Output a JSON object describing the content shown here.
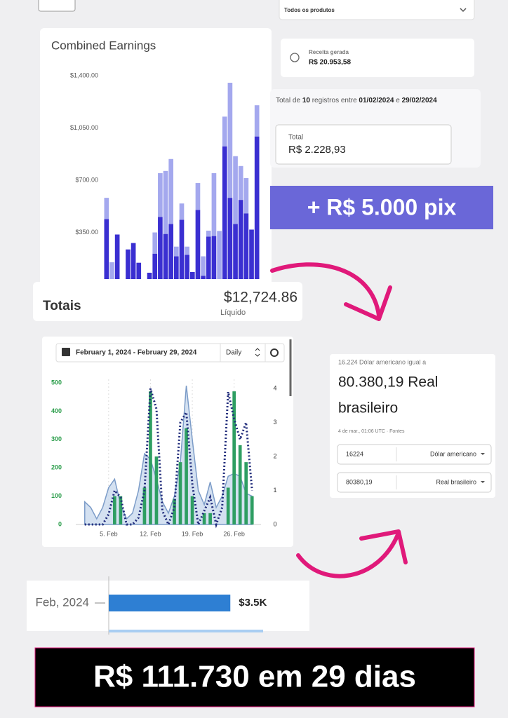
{
  "product_filter": "Todos os produtos",
  "revenue": {
    "label": "Receita gerada",
    "value": "R$ 20.953,58"
  },
  "records": {
    "prefix": "Total de",
    "count": "10",
    "middle": "registros entre",
    "start": "01/02/2024",
    "joiner": "e",
    "end": "29/02/2024"
  },
  "total_box": {
    "label": "Total",
    "value": "R$ 2.228,93"
  },
  "pix_banner": "+ R$ 5.000 pix",
  "totals": {
    "label": "Totais",
    "value": "$12,724.86",
    "sublabel": "Líquido"
  },
  "daily_controls": {
    "date_range": "February 1, 2024 - February 29, 2024",
    "interval": "Daily"
  },
  "converter": {
    "caption": "16.224 Dólar americano igual a",
    "result_line1": "80.380,19 Real",
    "result_line2": "brasileiro",
    "timestamp": "4 de mar., 01:06 UTC · Fontes",
    "from_amount": "16224",
    "from_currency": "Dólar americano",
    "to_amount": "80380,19",
    "to_currency": "Real brasileiro"
  },
  "footer_banner": "R$ 111.730 em 29 dias",
  "chart_data": [
    {
      "type": "bar",
      "title": "Combined Earnings",
      "stacked": true,
      "ylim": [
        0,
        1400
      ],
      "yticks": [
        {
          "value": 350,
          "label": "$350.00"
        },
        {
          "value": 700,
          "label": "$700.00"
        },
        {
          "value": 1050,
          "label": "$1,050.00"
        },
        {
          "value": 1400,
          "label": "$1,400.00"
        }
      ],
      "series": [
        {
          "color": "#3a2fd1",
          "values": [
            440,
            0,
            336,
            0,
            236,
            279,
            147,
            0,
            80,
            208,
            454,
            340,
            407,
            190,
            435,
            200,
            85,
            501,
            60,
            322,
            326,
            0,
            927,
            582,
            407,
            568,
            478,
            369,
            993
          ]
        },
        {
          "color": "#a4a8ee",
          "values": [
            142,
            150,
            0,
            0,
            0,
            0,
            0,
            0,
            0,
            142,
            293,
            422,
            435,
            65,
            109,
            55,
            0,
            180,
            130,
            40,
            421,
            360,
            199,
            771,
            454,
            227,
            236,
            0,
            209
          ]
        }
      ]
    },
    {
      "type": "combo",
      "x": [
        1,
        2,
        3,
        4,
        5,
        6,
        7,
        8,
        9,
        10,
        11,
        12,
        13,
        14,
        15,
        16,
        17,
        18,
        19,
        20,
        21,
        22,
        23,
        24,
        25,
        26,
        27,
        28,
        29
      ],
      "xlim": [
        -0.5,
        30.5
      ],
      "xticks": [
        {
          "value": 5,
          "label": "5. Feb"
        },
        {
          "value": 12,
          "label": "12. Feb"
        },
        {
          "value": 19,
          "label": "19. Feb"
        },
        {
          "value": 26,
          "label": "26. Feb"
        }
      ],
      "ylim": [
        0,
        500
      ],
      "yticks": [
        0,
        100,
        200,
        300,
        400,
        500
      ],
      "ytick_color": "#2a9d4a",
      "y2lim": [
        0,
        4
      ],
      "y2ticks": [
        0,
        1,
        2,
        3,
        4
      ],
      "series": [
        {
          "kind": "area",
          "color": "#7c9cc8",
          "values": [
            80,
            60,
            20,
            60,
            130,
            160,
            70,
            20,
            40,
            120,
            250,
            230,
            160,
            80,
            40,
            100,
            220,
            490,
            300,
            120,
            70,
            150,
            60,
            100,
            170,
            180,
            170,
            110,
            100
          ]
        },
        {
          "kind": "bar",
          "color": "#2e9e62",
          "values": [
            0,
            0,
            0,
            0,
            0,
            100,
            100,
            0,
            0,
            0,
            130,
            470,
            240,
            0,
            0,
            90,
            220,
            340,
            100,
            0,
            40,
            40,
            0,
            0,
            130,
            470,
            280,
            220,
            100
          ]
        },
        {
          "kind": "line",
          "axis": "y2",
          "color": "#1f2a7a",
          "values": [
            0,
            0,
            0,
            0,
            0.3,
            1,
            0.8,
            0,
            0,
            0.2,
            1,
            4,
            3.4,
            0.4,
            0,
            0.5,
            3,
            3.3,
            1.2,
            0,
            0.4,
            0.8,
            0,
            0.5,
            3.9,
            3.1,
            2.5,
            3,
            1
          ]
        }
      ]
    },
    {
      "type": "barh",
      "categories": [
        "Feb, 2024"
      ],
      "values": [
        3500
      ],
      "value_labels": [
        "$3.5K"
      ],
      "color": "#2e7fd3",
      "xlim": [
        0,
        4000
      ]
    }
  ]
}
